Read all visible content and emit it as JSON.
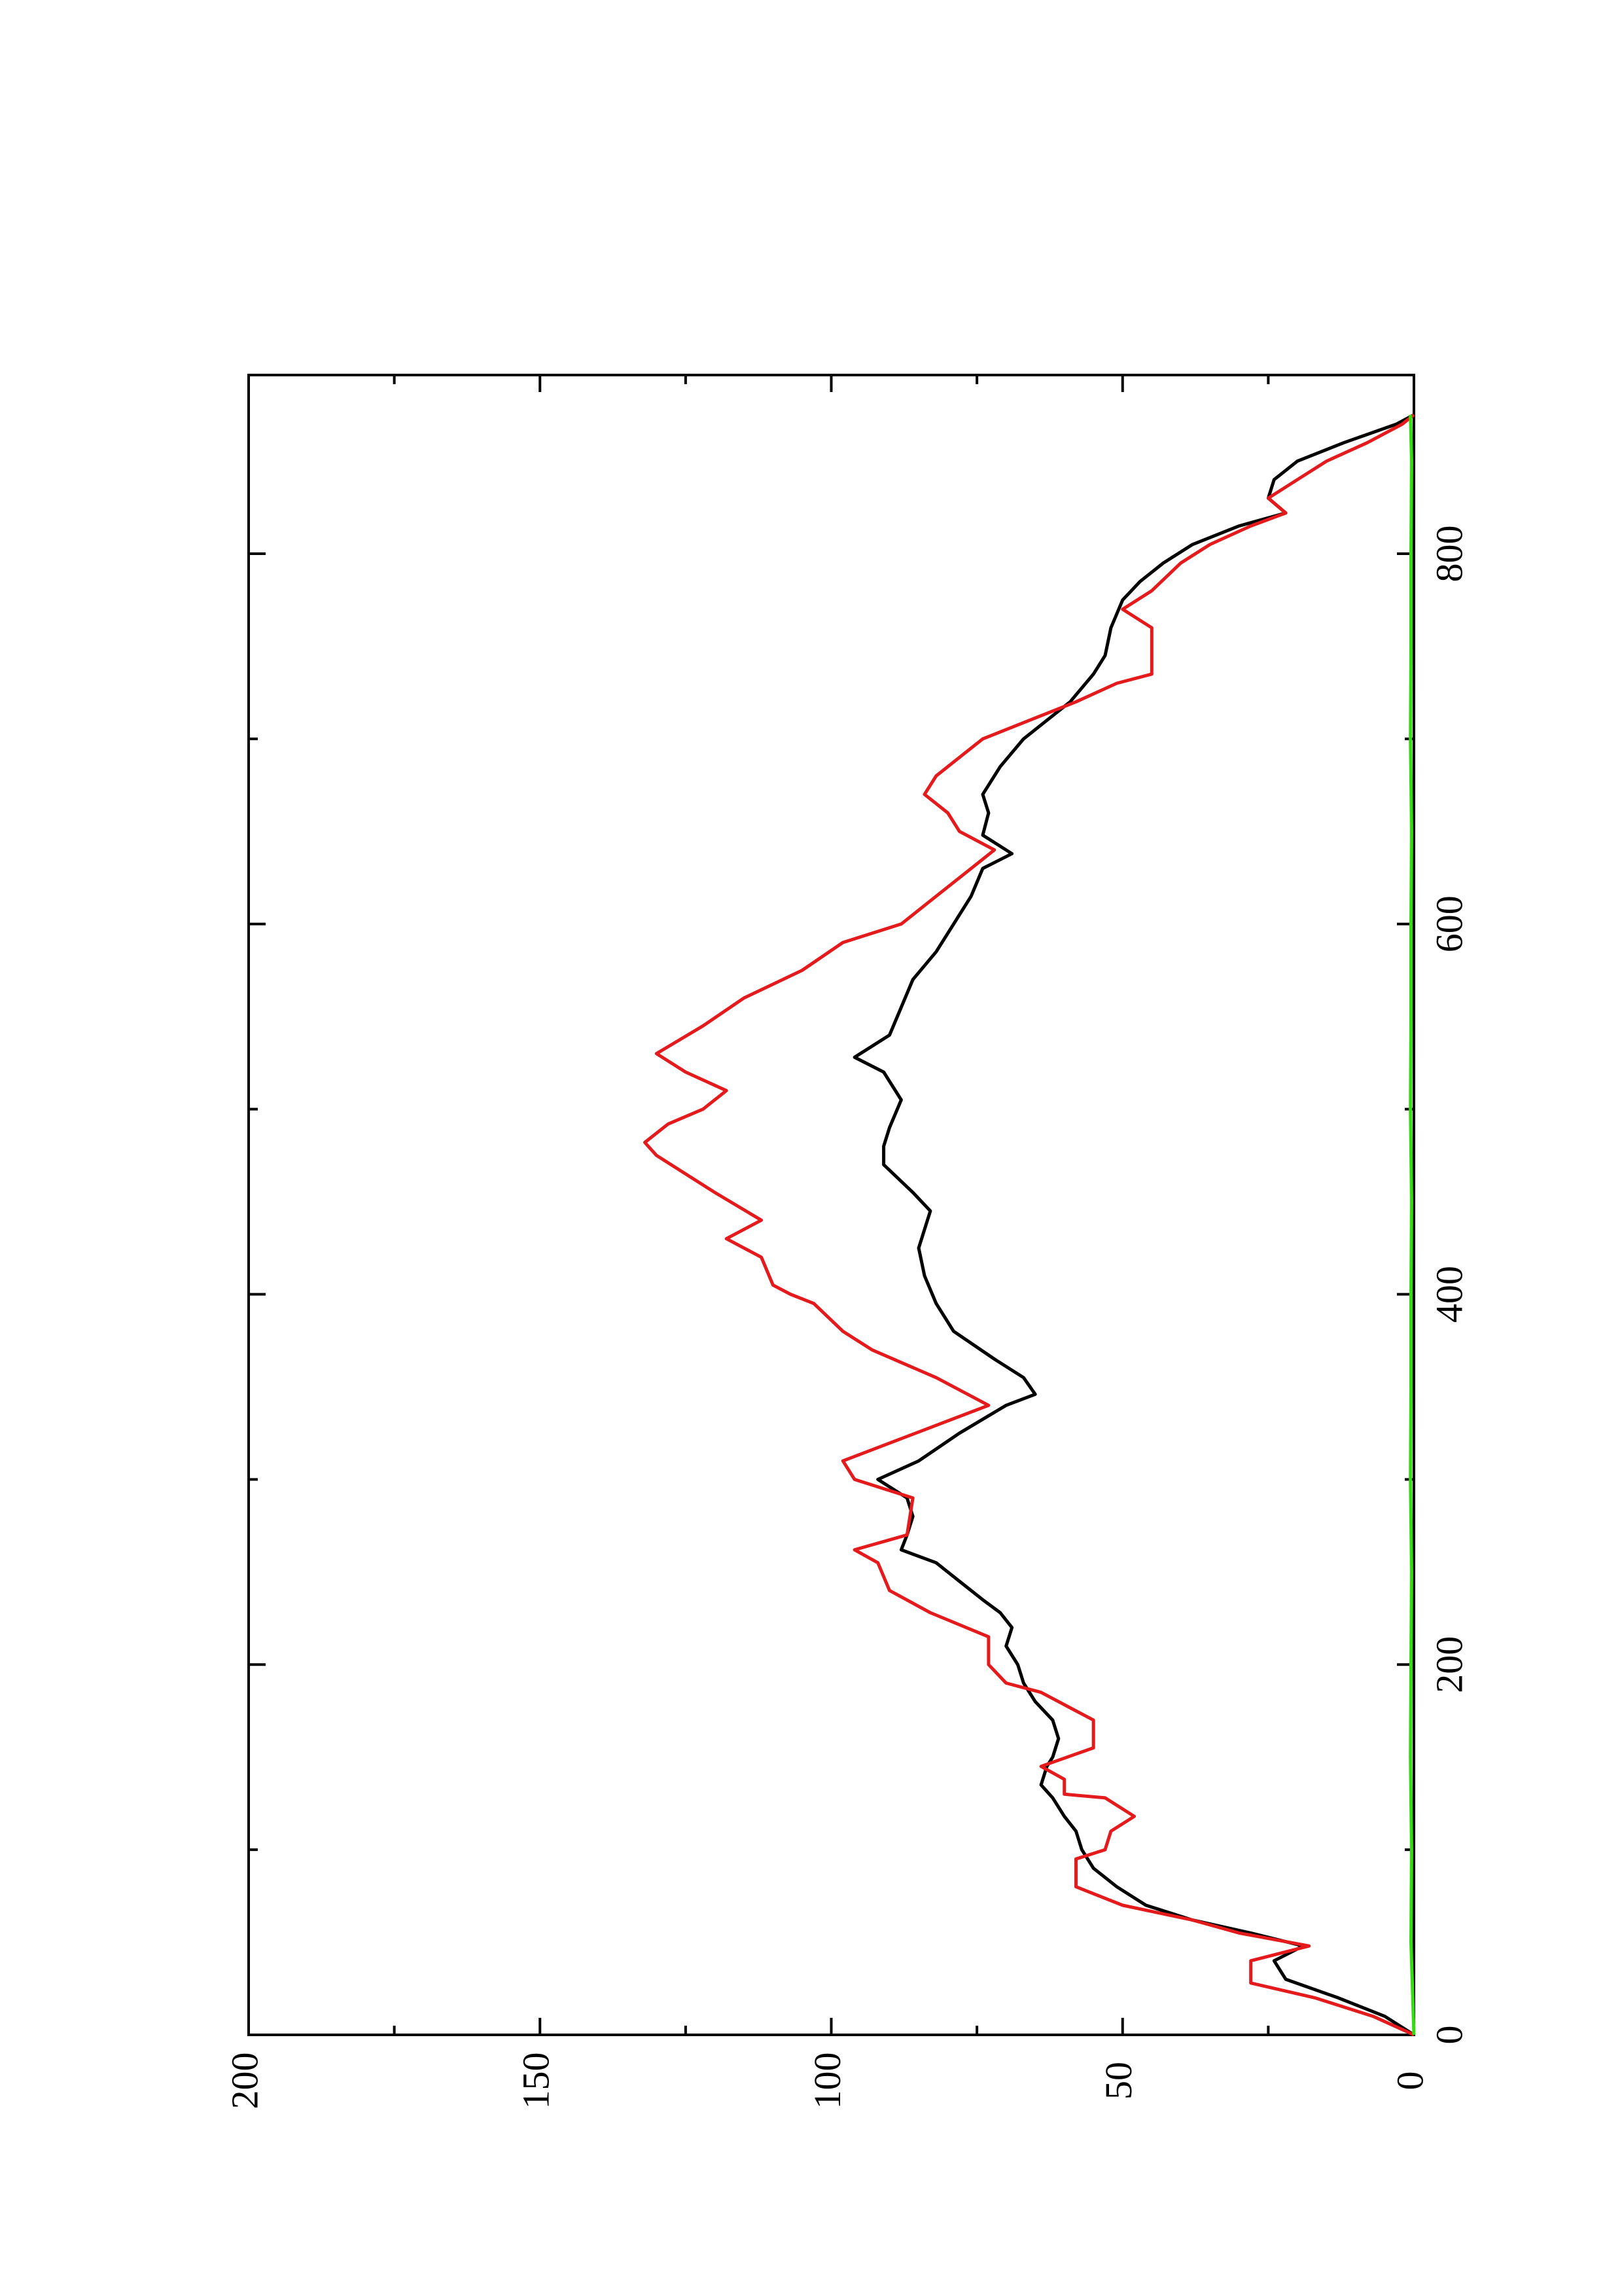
{
  "chart_data": {
    "type": "line",
    "orientation": "rotated-90-counterclockwise",
    "title": "",
    "xlabel": "",
    "ylabel": "",
    "xlim": [
      0,
      880
    ],
    "ylim": [
      0,
      200
    ],
    "x_ticks": [
      0,
      200,
      400,
      600,
      800
    ],
    "x_minor_ticks": [
      100,
      300,
      500,
      700
    ],
    "y_ticks": [
      0,
      50,
      100,
      150,
      200
    ],
    "y_minor_ticks": [
      25,
      75,
      125,
      175
    ],
    "grid": false,
    "legend": "none",
    "series": [
      {
        "color": "#000000",
        "points": [
          [
            0,
            0
          ],
          [
            10,
            5
          ],
          [
            20,
            13
          ],
          [
            30,
            22
          ],
          [
            40,
            24
          ],
          [
            48,
            19
          ],
          [
            55,
            28
          ],
          [
            62,
            38
          ],
          [
            70,
            46
          ],
          [
            80,
            51
          ],
          [
            90,
            55
          ],
          [
            100,
            57
          ],
          [
            110,
            58
          ],
          [
            118,
            60
          ],
          [
            128,
            62
          ],
          [
            135,
            64
          ],
          [
            145,
            63
          ],
          [
            150,
            62
          ],
          [
            160,
            61
          ],
          [
            170,
            62
          ],
          [
            180,
            65
          ],
          [
            190,
            67
          ],
          [
            200,
            68
          ],
          [
            210,
            70
          ],
          [
            220,
            69
          ],
          [
            228,
            71
          ],
          [
            235,
            74
          ],
          [
            245,
            78
          ],
          [
            255,
            82
          ],
          [
            262,
            88
          ],
          [
            270,
            87
          ],
          [
            280,
            86
          ],
          [
            290,
            87
          ],
          [
            300,
            92
          ],
          [
            310,
            85
          ],
          [
            325,
            78
          ],
          [
            340,
            70
          ],
          [
            346,
            65
          ],
          [
            355,
            67
          ],
          [
            365,
            72
          ],
          [
            380,
            79
          ],
          [
            395,
            82
          ],
          [
            410,
            84
          ],
          [
            425,
            85
          ],
          [
            435,
            84
          ],
          [
            445,
            83
          ],
          [
            455,
            86
          ],
          [
            470,
            91
          ],
          [
            480,
            91
          ],
          [
            490,
            90
          ],
          [
            505,
            88
          ],
          [
            520,
            91
          ],
          [
            528,
            96
          ],
          [
            540,
            90
          ],
          [
            555,
            88
          ],
          [
            570,
            86
          ],
          [
            585,
            82
          ],
          [
            600,
            79
          ],
          [
            615,
            76
          ],
          [
            630,
            74
          ],
          [
            638,
            69
          ],
          [
            648,
            74
          ],
          [
            660,
            73
          ],
          [
            670,
            74
          ],
          [
            685,
            71
          ],
          [
            700,
            67
          ],
          [
            710,
            63
          ],
          [
            720,
            59
          ],
          [
            735,
            55
          ],
          [
            745,
            53
          ],
          [
            760,
            52
          ],
          [
            775,
            50
          ],
          [
            785,
            47
          ],
          [
            795,
            43
          ],
          [
            805,
            38
          ],
          [
            815,
            30
          ],
          [
            822,
            22
          ],
          [
            830,
            25
          ],
          [
            840,
            24
          ],
          [
            850,
            20
          ],
          [
            860,
            12
          ],
          [
            870,
            3
          ],
          [
            875,
            0
          ]
        ]
      },
      {
        "color": "#e41a1c",
        "points": [
          [
            0,
            0
          ],
          [
            10,
            7
          ],
          [
            20,
            17
          ],
          [
            28,
            28
          ],
          [
            40,
            28
          ],
          [
            48,
            18
          ],
          [
            55,
            30
          ],
          [
            62,
            38
          ],
          [
            70,
            50
          ],
          [
            80,
            58
          ],
          [
            95,
            58
          ],
          [
            100,
            53
          ],
          [
            110,
            52
          ],
          [
            118,
            48
          ],
          [
            128,
            53
          ],
          [
            130,
            60
          ],
          [
            138,
            60
          ],
          [
            145,
            64
          ],
          [
            155,
            55
          ],
          [
            170,
            55
          ],
          [
            175,
            58
          ],
          [
            185,
            64
          ],
          [
            190,
            70
          ],
          [
            200,
            73
          ],
          [
            215,
            73
          ],
          [
            228,
            83
          ],
          [
            240,
            90
          ],
          [
            255,
            92
          ],
          [
            262,
            96
          ],
          [
            270,
            87
          ],
          [
            290,
            86
          ],
          [
            300,
            96
          ],
          [
            310,
            98
          ],
          [
            322,
            88
          ],
          [
            340,
            73
          ],
          [
            355,
            82
          ],
          [
            370,
            93
          ],
          [
            380,
            98
          ],
          [
            395,
            103
          ],
          [
            400,
            107
          ],
          [
            405,
            110
          ],
          [
            420,
            112
          ],
          [
            430,
            118
          ],
          [
            440,
            112
          ],
          [
            455,
            120
          ],
          [
            465,
            125
          ],
          [
            475,
            130
          ],
          [
            482,
            132
          ],
          [
            492,
            128
          ],
          [
            500,
            122
          ],
          [
            510,
            118
          ],
          [
            520,
            125
          ],
          [
            530,
            130
          ],
          [
            545,
            122
          ],
          [
            560,
            115
          ],
          [
            575,
            105
          ],
          [
            590,
            98
          ],
          [
            600,
            88
          ],
          [
            615,
            82
          ],
          [
            630,
            76
          ],
          [
            640,
            72
          ],
          [
            650,
            78
          ],
          [
            660,
            80
          ],
          [
            670,
            84
          ],
          [
            680,
            82
          ],
          [
            690,
            78
          ],
          [
            700,
            74
          ],
          [
            710,
            66
          ],
          [
            720,
            58
          ],
          [
            730,
            51
          ],
          [
            735,
            45
          ],
          [
            750,
            45
          ],
          [
            760,
            45
          ],
          [
            770,
            50
          ],
          [
            780,
            45
          ],
          [
            795,
            40
          ],
          [
            805,
            35
          ],
          [
            815,
            28
          ],
          [
            822,
            22
          ],
          [
            830,
            25
          ],
          [
            840,
            20
          ],
          [
            850,
            15
          ],
          [
            860,
            8
          ],
          [
            870,
            2
          ],
          [
            875,
            0
          ]
        ]
      },
      {
        "color": "#33dd11",
        "points": [
          [
            0,
            0
          ],
          [
            50,
            0.5
          ],
          [
            100,
            0.4
          ],
          [
            150,
            0.6
          ],
          [
            200,
            0.5
          ],
          [
            250,
            0.4
          ],
          [
            300,
            0.6
          ],
          [
            350,
            0.5
          ],
          [
            400,
            0.5
          ],
          [
            450,
            0.4
          ],
          [
            500,
            0.6
          ],
          [
            550,
            0.5
          ],
          [
            600,
            0.5
          ],
          [
            650,
            0.4
          ],
          [
            700,
            0.6
          ],
          [
            750,
            0.5
          ],
          [
            800,
            0.5
          ],
          [
            850,
            0.4
          ],
          [
            875,
            0.6
          ]
        ]
      }
    ]
  }
}
